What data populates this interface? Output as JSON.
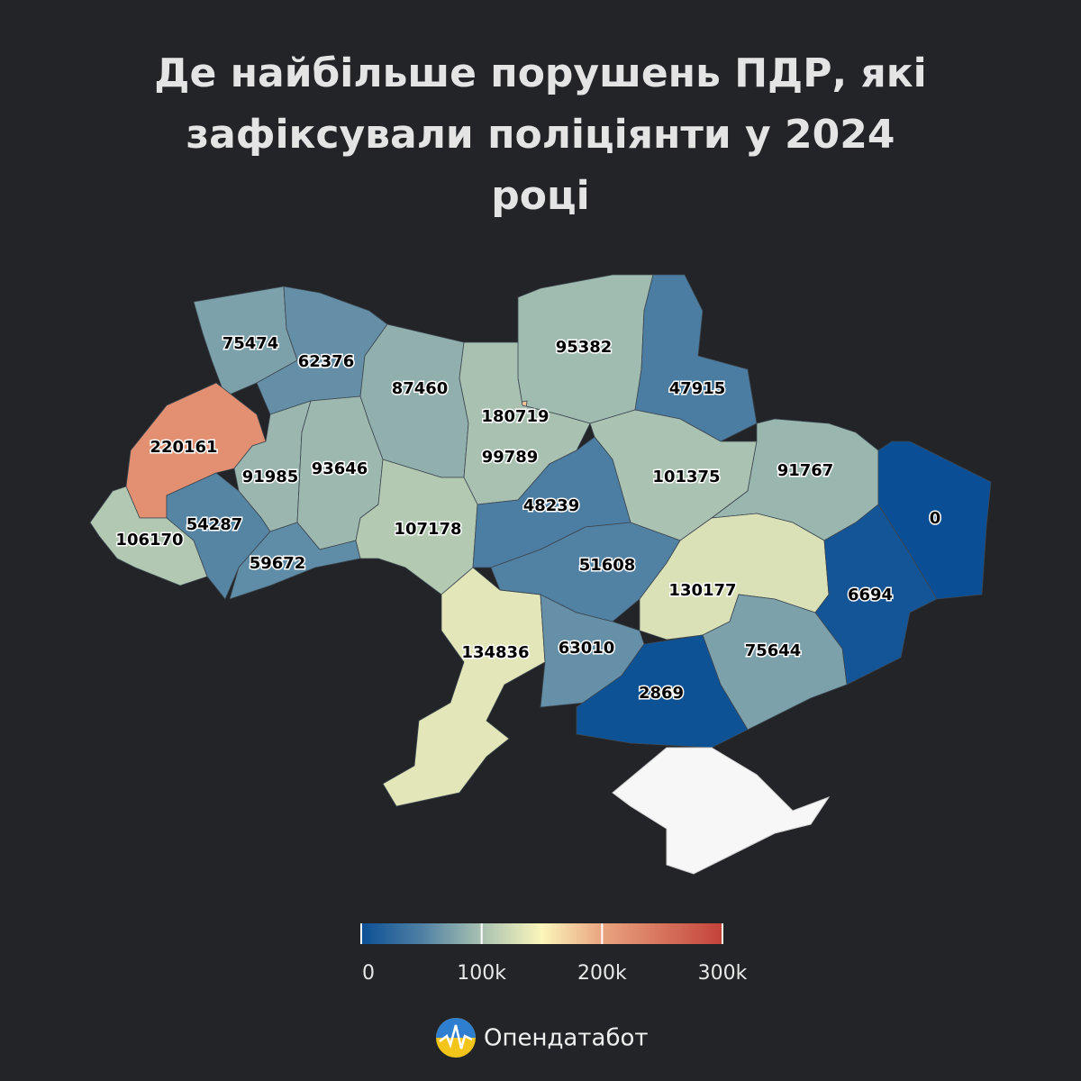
{
  "chart_data": {
    "type": "choropleth",
    "title": "Де найбільше порушень ПДР, які зафіксували поліціянти у 2024 році",
    "values": [
      75474,
      62376,
      87460,
      95382,
      47915,
      180719,
      220161,
      91985,
      93646,
      99789,
      101375,
      91767,
      0,
      106170,
      54287,
      59672,
      107178,
      48239,
      51608,
      130177,
      6694,
      134836,
      63010,
      75644,
      2869
    ],
    "clim": [
      0,
      300000
    ],
    "cticks": [
      0,
      {
        "value": 100000,
        "label": "100k"
      },
      {
        "value": 200000,
        "label": "200k"
      },
      {
        "value": 300000,
        "label": "300k"
      }
    ],
    "colorscale": [
      [
        0,
        "#0a4f95"
      ],
      [
        50000,
        "#4e7fa3"
      ],
      [
        100000,
        "#a8c1b1"
      ],
      [
        150000,
        "#fbf6bb"
      ],
      [
        200000,
        "#e9a47f"
      ],
      [
        300000,
        "#c4413a"
      ]
    ],
    "brand": "Опендатабот"
  }
}
